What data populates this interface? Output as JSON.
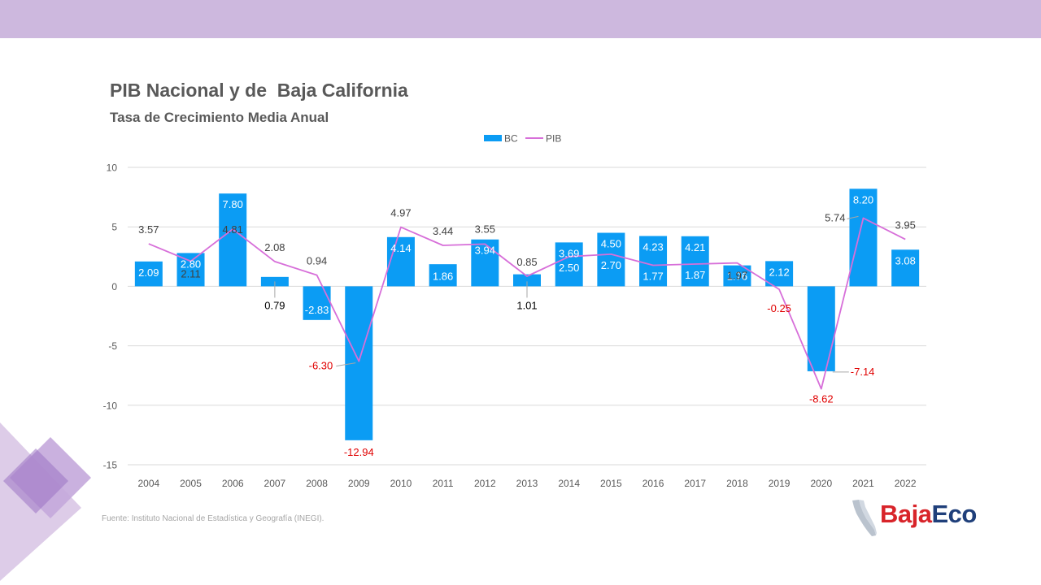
{
  "header": {
    "band_color": "#cdb8de"
  },
  "title": "PIB Nacional y de  Baja California",
  "subtitle": "Tasa de Crecimiento Media Anual",
  "source": "Fuente: Instituto Nacional de Estadística y Geografía (INEGI).",
  "logo": {
    "part1": "Baja",
    "part2": "Eco",
    "icon": "baja-california-map-icon"
  },
  "chart_data": {
    "type": "bar",
    "title": "PIB Nacional y de  Baja California",
    "subtitle": "Tasa de Crecimiento Media Anual",
    "categories": [
      "2004",
      "2005",
      "2006",
      "2007",
      "2008",
      "2009",
      "2010",
      "2011",
      "2012",
      "2013",
      "2014",
      "2015",
      "2016",
      "2017",
      "2018",
      "2019",
      "2020",
      "2021",
      "2022"
    ],
    "series": [
      {
        "name": "BC",
        "type": "bar",
        "color": "#0b9cf4",
        "values": [
          2.09,
          2.8,
          7.8,
          0.79,
          -2.83,
          -12.94,
          4.14,
          1.86,
          3.94,
          1.01,
          3.69,
          4.5,
          4.23,
          4.21,
          1.76,
          2.12,
          -7.14,
          8.2,
          3.08
        ],
        "labels": [
          "2.09",
          "2.80",
          "7.80",
          "0.79",
          "-2.83",
          "-12.94",
          "4.14",
          "1.86",
          "3.94",
          "1.01",
          "3.69",
          "4.50",
          "4.23",
          "4.21",
          "1.76",
          "2.12",
          "-7.14",
          "8.20",
          "3.08"
        ]
      },
      {
        "name": "PIB",
        "type": "line",
        "color": "#d76fd9",
        "values": [
          3.57,
          2.11,
          4.81,
          2.08,
          0.94,
          -6.3,
          4.97,
          3.44,
          3.55,
          0.85,
          2.5,
          2.7,
          1.77,
          1.87,
          1.97,
          -0.25,
          -8.62,
          5.74,
          3.95
        ],
        "labels": [
          "3.57",
          "2.11",
          "4.81",
          "2.08",
          "0.94",
          "-6.30",
          "4.97",
          "3.44",
          "3.55",
          "0.85",
          "2.50",
          "2.70",
          "1.77",
          "1.87",
          "1.97",
          "-0.25",
          "-8.62",
          "5.74",
          "3.95"
        ]
      }
    ],
    "ylim": [
      -15,
      10
    ],
    "yticks": [
      "10",
      "5",
      "0",
      "-5",
      "-10",
      "-15"
    ],
    "grid": true,
    "legend": "top-center",
    "negative_label_color": "#e00000"
  }
}
